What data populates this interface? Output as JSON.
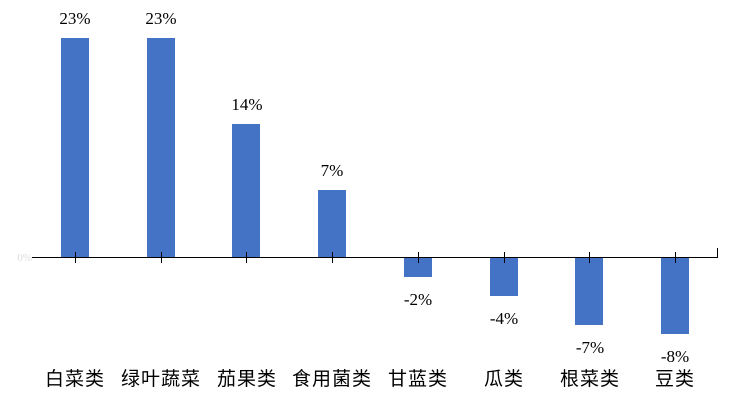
{
  "chart_data": {
    "type": "bar",
    "title": "",
    "xlabel": "",
    "ylabel": "",
    "categories": [
      "白菜类",
      "绿叶蔬菜",
      "茄果类",
      "食用菌类",
      "甘蓝类",
      "瓜类",
      "根菜类",
      "豆类"
    ],
    "values": [
      23,
      23,
      14,
      7,
      -2,
      -4,
      -7,
      -8
    ],
    "data_labels": [
      "23%",
      "23%",
      "14%",
      "7%",
      "-2%",
      "-4%",
      "-7%",
      "-8%"
    ],
    "unit": "percent",
    "baseline_value": 0,
    "zero_label": "0%",
    "ylim": [
      -10,
      25
    ],
    "grid": false,
    "legend_position": "none",
    "colors": {
      "bar": "#4472C4",
      "axis": "#000000",
      "text": "#000000",
      "background": "#FFFFFF",
      "zero_label_faint": "#DCDCDC"
    }
  }
}
